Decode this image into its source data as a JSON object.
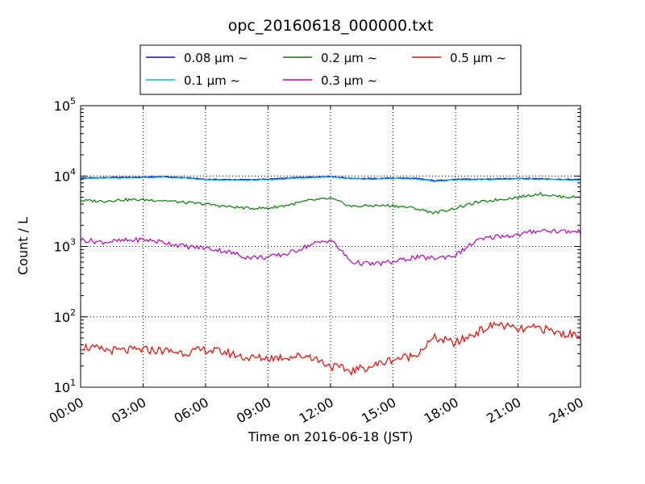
{
  "chart_data": {
    "type": "line",
    "title": "opc_20160618_000000.txt",
    "xlabel": "Time on 2016-06-18 (JST)",
    "ylabel": "Count / L",
    "yscale": "log",
    "xlim": [
      "2016-06-18 00:00",
      "2016-06-19 00:00"
    ],
    "ylim": [
      10,
      100000
    ],
    "grid": true,
    "legend_position": "top-center",
    "x_tick_labels": [
      "00:00",
      "03:00",
      "06:00",
      "09:00",
      "12:00",
      "15:00",
      "18:00",
      "21:00",
      "24:00"
    ],
    "y_tick_labels": [
      {
        "base": "10",
        "exp": "1"
      },
      {
        "base": "10",
        "exp": "2"
      },
      {
        "base": "10",
        "exp": "3"
      },
      {
        "base": "10",
        "exp": "4"
      },
      {
        "base": "10",
        "exp": "5"
      }
    ],
    "x": [
      "00:00",
      "01:00",
      "02:00",
      "03:00",
      "04:00",
      "05:00",
      "06:00",
      "07:00",
      "08:00",
      "09:00",
      "10:00",
      "11:00",
      "12:00",
      "13:00",
      "14:00",
      "15:00",
      "16:00",
      "17:00",
      "18:00",
      "19:00",
      "20:00",
      "21:00",
      "22:00",
      "23:00",
      "24:00"
    ],
    "series": [
      {
        "name": "0.08 μm ~",
        "color": "#0000ff",
        "values": [
          9400,
          9500,
          9600,
          9700,
          9800,
          9500,
          9000,
          8900,
          8900,
          9000,
          9400,
          9700,
          9900,
          9300,
          9200,
          9400,
          9300,
          8600,
          9000,
          9000,
          9100,
          9300,
          9200,
          9000,
          8900
        ]
      },
      {
        "name": "0.1 μm ~",
        "color": "#00bfbf",
        "values": [
          9200,
          9300,
          9400,
          9500,
          9600,
          9300,
          8800,
          8700,
          8700,
          8800,
          9200,
          9500,
          9700,
          9100,
          9000,
          9200,
          9100,
          8400,
          8800,
          8800,
          8900,
          9100,
          9000,
          8800,
          8700
        ]
      },
      {
        "name": "0.2 μm ~",
        "color": "#008000",
        "values": [
          4500,
          4400,
          4600,
          4600,
          4500,
          4200,
          4000,
          3700,
          3500,
          3500,
          3900,
          4500,
          4800,
          3700,
          3800,
          3800,
          3500,
          3000,
          3500,
          4200,
          4600,
          5000,
          5600,
          5100,
          5000
        ]
      },
      {
        "name": "0.3 μm ~",
        "color": "#bf00bf",
        "values": [
          1250,
          1150,
          1200,
          1250,
          1150,
          1000,
          950,
          850,
          700,
          700,
          800,
          1050,
          1250,
          600,
          560,
          600,
          700,
          680,
          750,
          1200,
          1400,
          1450,
          1700,
          1650,
          1600
        ]
      },
      {
        "name": "0.5 μm ~",
        "color": "#ff0000",
        "values": [
          38,
          34,
          33,
          34,
          33,
          31,
          34,
          31,
          26,
          26,
          27,
          28,
          20,
          17,
          20,
          25,
          28,
          50,
          42,
          60,
          80,
          65,
          70,
          58,
          55
        ]
      }
    ]
  }
}
